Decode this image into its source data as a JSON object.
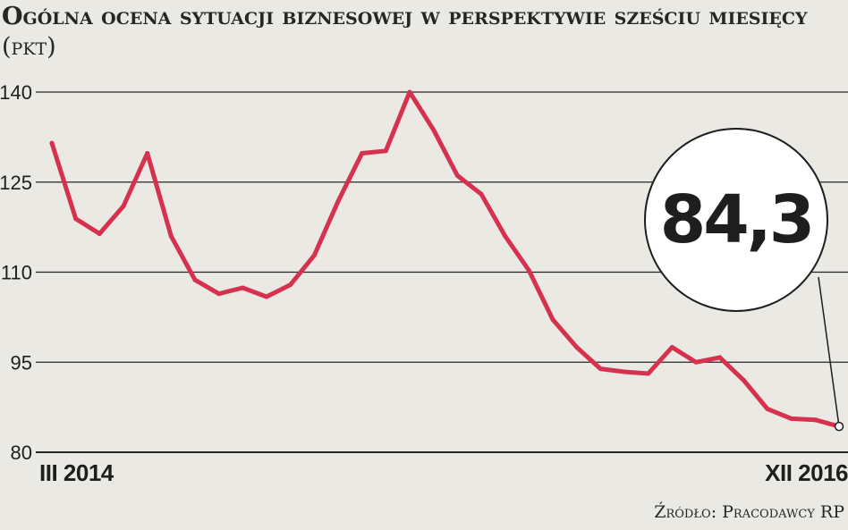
{
  "title": {
    "text": "Ogólna ocena sytuacji biznesowej w perspektywie sześciu miesięcy",
    "unit": "(pkt)"
  },
  "source": "Źródło: Pracodawcy RP",
  "callout": {
    "value_label": "84,3"
  },
  "colors": {
    "line": "#d6314f",
    "grid": "#262626",
    "background": "#ebe9e4"
  },
  "chart_data": {
    "type": "line",
    "title": "Ogólna ocena sytuacji biznesowej w perspektywie sześciu miesięcy (pkt)",
    "xlabel": "",
    "ylabel": "",
    "x_tick_labels": [
      "III 2014",
      "XII 2016"
    ],
    "y_ticks": [
      80,
      95,
      110,
      125,
      140
    ],
    "y_tick_labels": [
      "80",
      "95",
      "110",
      "125",
      "140"
    ],
    "ylim": [
      80,
      140
    ],
    "grid": true,
    "legend": "none",
    "series": [
      {
        "values": [
          131.5,
          118.9,
          116.4,
          121.0,
          129.8,
          116.0,
          108.7,
          106.4,
          107.4,
          105.9,
          107.9,
          112.8,
          121.8,
          129.8,
          130.2,
          140.0,
          133.7,
          126.1,
          123.0,
          116.0,
          110.3,
          102.1,
          97.5,
          93.9,
          93.4,
          93.1,
          97.5,
          95.0,
          95.8,
          92.0,
          87.2,
          85.6,
          85.4,
          84.3
        ]
      }
    ],
    "annotation": {
      "text": "84,3",
      "point_index": 33
    }
  }
}
